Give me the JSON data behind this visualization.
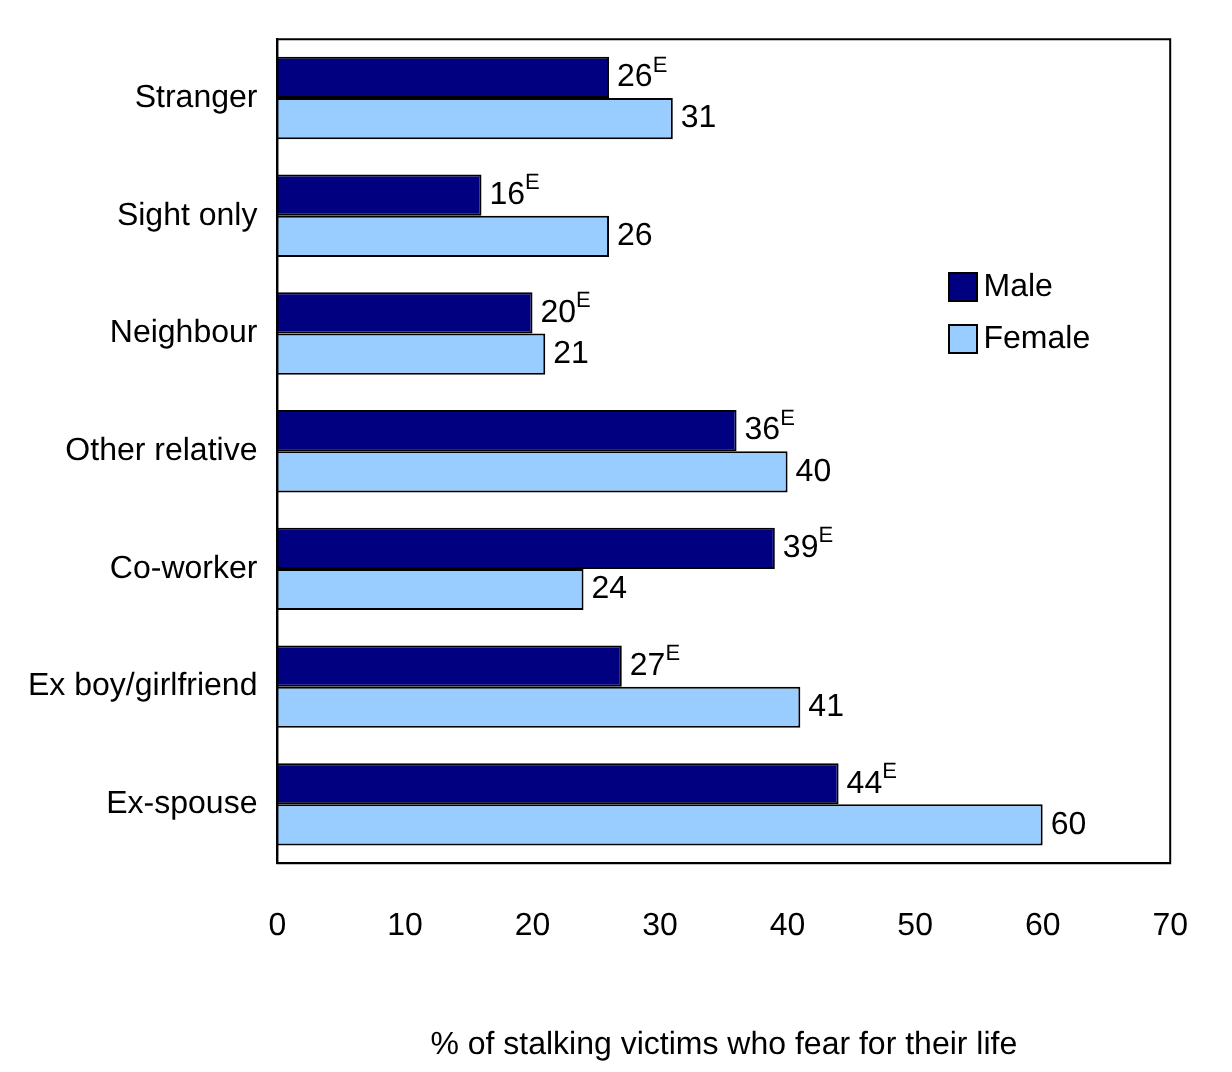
{
  "chart_data": {
    "type": "bar",
    "orientation": "horizontal",
    "categories": [
      "Stranger",
      "Sight only",
      "Neighbour",
      "Other relative",
      "Co-worker",
      "Ex boy/girlfriend",
      "Ex-spouse"
    ],
    "series": [
      {
        "name": "Male",
        "color": "#000080",
        "values": [
          26,
          16,
          20,
          36,
          39,
          27,
          44
        ],
        "value_labels": [
          "26$^{E}$",
          "16$^{E}$",
          "20$^{E}$",
          "36$^{E}$",
          "39$^{E}$",
          "27$^{E}$",
          "44$^{E}$"
        ]
      },
      {
        "name": "Female",
        "color": "#99ccff",
        "values": [
          31,
          26,
          21,
          40,
          24,
          41,
          60
        ],
        "value_labels": [
          "31",
          "26",
          "21",
          "40",
          "24",
          "41",
          "60"
        ]
      }
    ],
    "xlabel": "% of stalking victims who fear for their life",
    "xlim": [
      0,
      70
    ],
    "xticks": [
      0,
      10,
      20,
      30,
      40,
      50,
      60,
      70
    ],
    "grid": false,
    "legend": "top right"
  }
}
